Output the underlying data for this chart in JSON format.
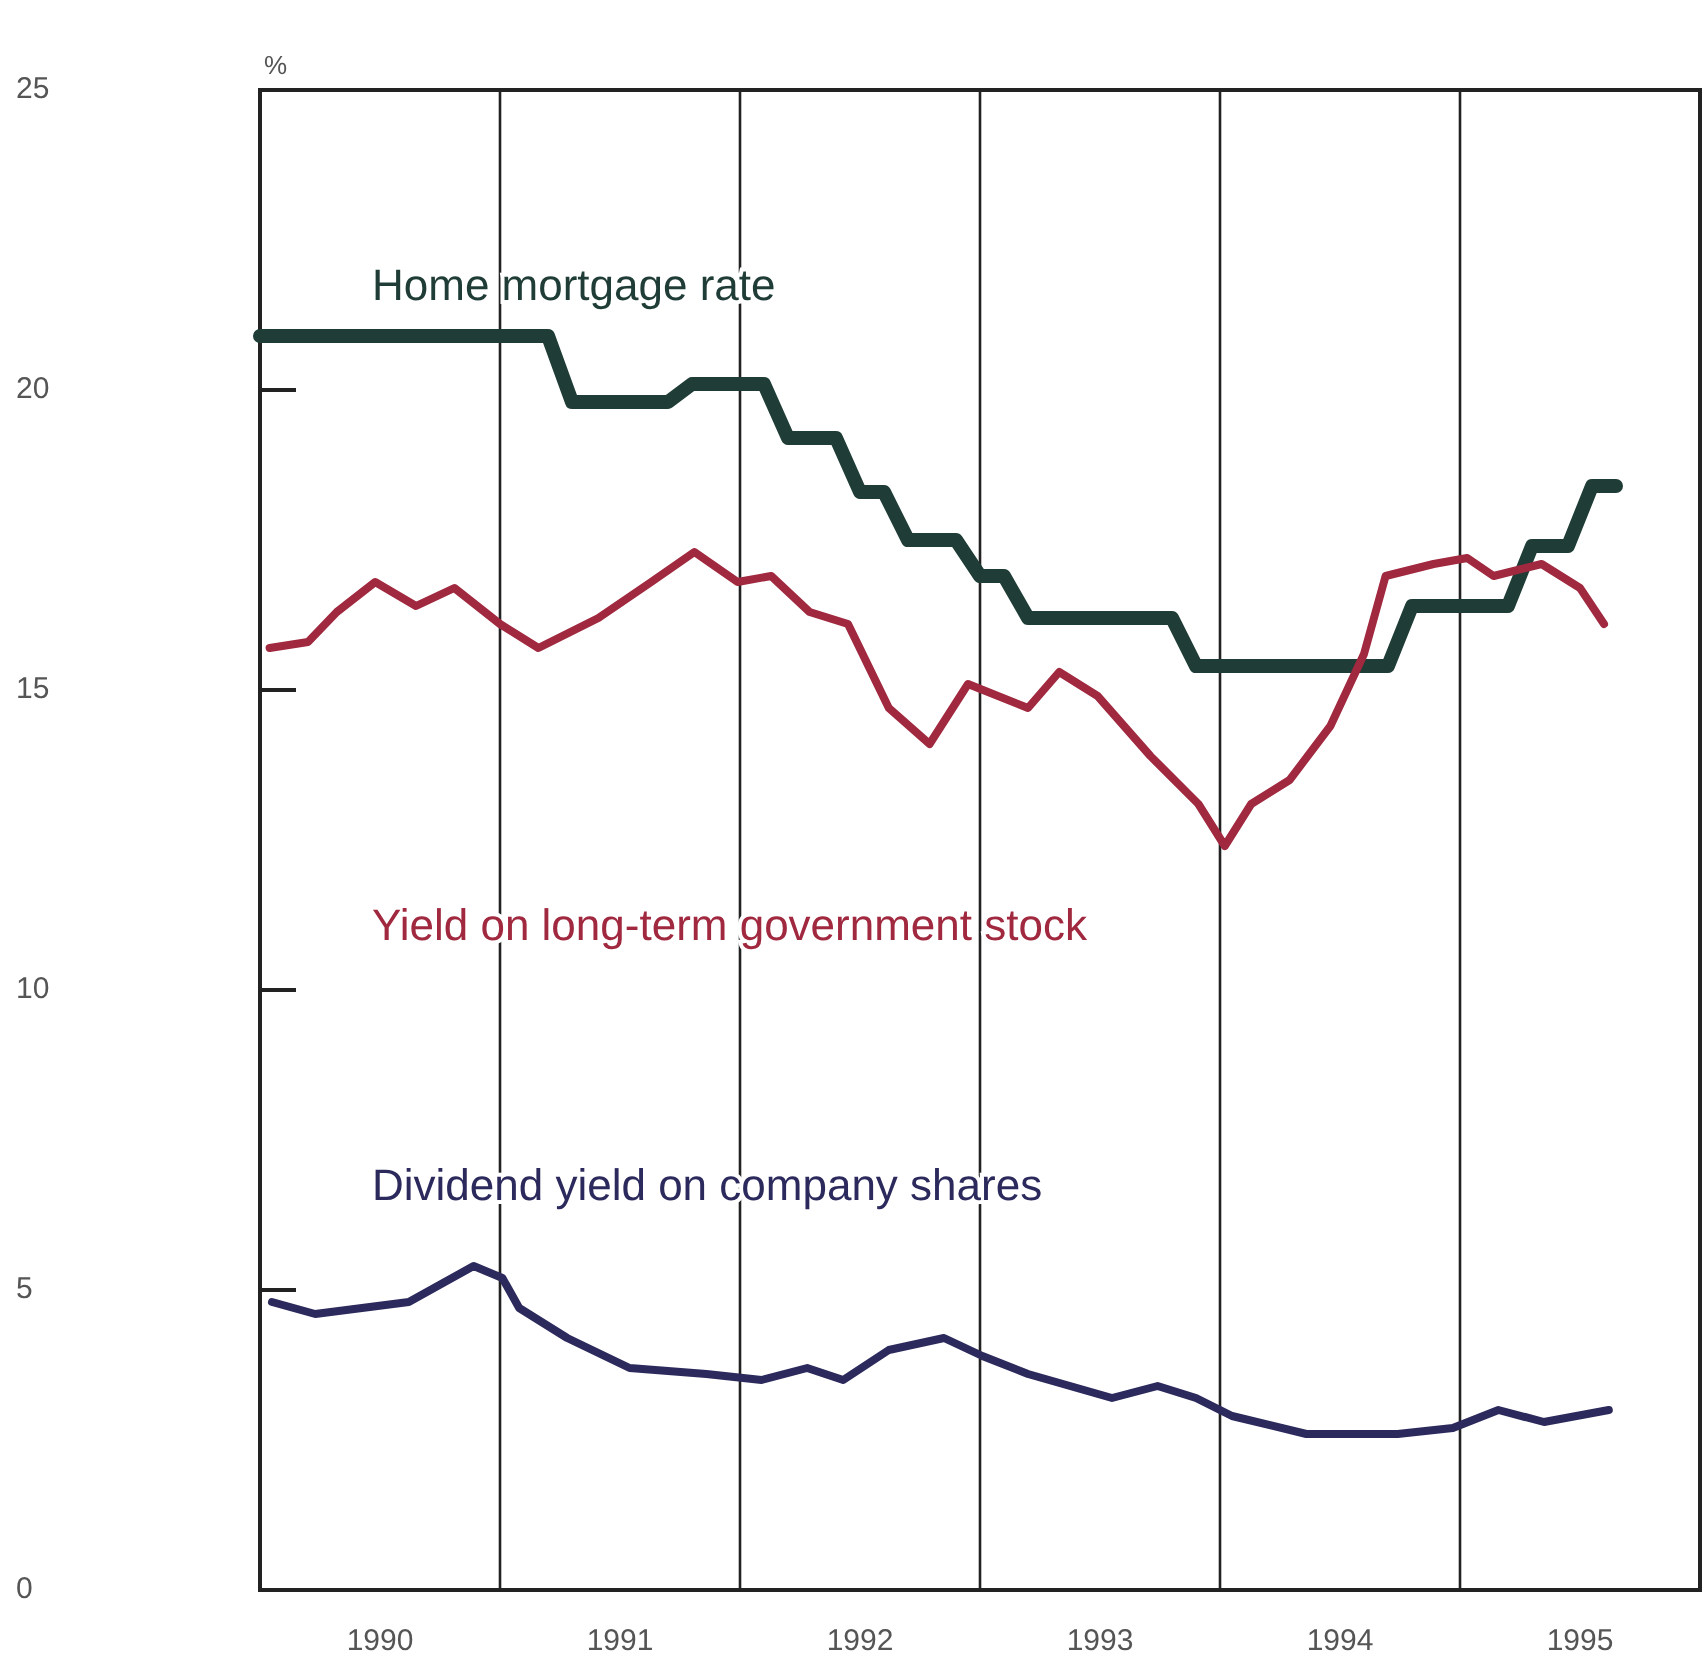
{
  "chart_data": {
    "type": "line",
    "ylabel": "%",
    "xlim": [
      1990,
      1996
    ],
    "ylim": [
      0,
      25
    ],
    "xticks": [
      {
        "value": 1990.5,
        "label": "1990"
      },
      {
        "value": 1991.5,
        "label": "1991"
      },
      {
        "value": 1992.5,
        "label": "1992"
      },
      {
        "value": 1993.5,
        "label": "1993"
      },
      {
        "value": 1994.5,
        "label": "1994"
      },
      {
        "value": 1995.5,
        "label": "1995"
      }
    ],
    "yticks": [
      0,
      5,
      10,
      15,
      20,
      25
    ],
    "grid": false,
    "legend": false,
    "marker": "none",
    "line_style": "solid",
    "ref_lines": [
      {
        "axis": "x",
        "value": 1991
      },
      {
        "axis": "x",
        "value": 1992
      },
      {
        "axis": "x",
        "value": 1993
      },
      {
        "axis": "x",
        "value": 1994
      },
      {
        "axis": "x",
        "value": 1995
      }
    ],
    "series": [
      {
        "name": "Home mortgage rate",
        "color": "#1f3d36",
        "x": [
          1990,
          1991.2,
          1991.3,
          1991.7,
          1991.8,
          1992.1,
          1992.2,
          1992.4,
          1992.5,
          1992.6,
          1992.7,
          1992.9,
          1993.0,
          1993.1,
          1993.2,
          1993.8,
          1993.9,
          1994.7,
          1994.8,
          1995.2,
          1995.3,
          1995.45,
          1995.55,
          1995.65
        ],
        "values": [
          20.9,
          20.9,
          19.8,
          19.8,
          20.1,
          20.1,
          19.2,
          19.2,
          18.3,
          18.3,
          17.5,
          17.5,
          16.9,
          16.9,
          16.2,
          16.2,
          15.4,
          15.4,
          16.4,
          16.4,
          17.4,
          17.4,
          18.4,
          18.4
        ]
      },
      {
        "name": "Yield on long-term government stock",
        "color": "#a0283f",
        "x": [
          1990.04,
          1990.2,
          1990.32,
          1990.48,
          1990.65,
          1990.81,
          1991.0,
          1991.16,
          1991.41,
          1991.63,
          1991.81,
          1991.99,
          1992.13,
          1992.29,
          1992.45,
          1992.62,
          1992.79,
          1992.95,
          1993.2,
          1993.33,
          1993.49,
          1993.71,
          1993.91,
          1994.02,
          1994.13,
          1994.29,
          1994.46,
          1994.6,
          1994.69,
          1994.89,
          1995.03,
          1995.14,
          1995.34,
          1995.5,
          1995.6
        ],
        "values": [
          15.7,
          15.8,
          16.3,
          16.8,
          16.4,
          16.7,
          16.1,
          15.7,
          16.2,
          16.8,
          17.3,
          16.8,
          16.9,
          16.3,
          16.1,
          14.7,
          14.1,
          15.1,
          14.7,
          15.3,
          14.9,
          13.9,
          13.1,
          12.4,
          13.1,
          13.5,
          14.4,
          15.6,
          16.9,
          17.1,
          17.2,
          16.9,
          17.1,
          16.7,
          16.1
        ]
      },
      {
        "name": "Dividend yield on company shares",
        "color": "#2c2a5c",
        "x": [
          1990.05,
          1990.23,
          1990.62,
          1990.89,
          1991.01,
          1991.08,
          1991.28,
          1991.54,
          1991.86,
          1992.09,
          1992.28,
          1992.43,
          1992.62,
          1992.85,
          1993.01,
          1993.2,
          1993.55,
          1993.74,
          1993.9,
          1994.05,
          1994.36,
          1994.74,
          1994.97,
          1995.16,
          1995.35,
          1995.62
        ],
        "values": [
          4.8,
          4.6,
          4.8,
          5.4,
          5.2,
          4.7,
          4.2,
          3.7,
          3.6,
          3.5,
          3.7,
          3.5,
          4.0,
          4.2,
          3.9,
          3.6,
          3.2,
          3.4,
          3.2,
          2.9,
          2.6,
          2.6,
          2.7,
          3.0,
          2.8,
          3.0
        ]
      }
    ]
  }
}
